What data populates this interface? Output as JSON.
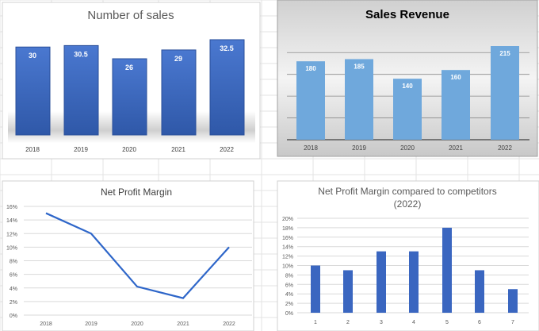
{
  "colors": {
    "bar_dark": "#3a66c0",
    "bar_light": "#6fa8dc",
    "line": "#2e66c9",
    "grid": "#d9d9d9",
    "sheet_grid": "#e3e3e3"
  },
  "chart_data": [
    {
      "type": "bar",
      "title": "Number of sales",
      "categories": [
        "2018",
        "2019",
        "2020",
        "2021",
        "2022"
      ],
      "values": [
        30,
        30.5,
        26,
        29,
        32.5
      ],
      "data_labels": [
        "30",
        "30.5",
        "26",
        "29",
        "32.5"
      ],
      "ylim": [
        0,
        35
      ],
      "grid": false,
      "legend": "none"
    },
    {
      "type": "bar",
      "title": "Sales Revenue",
      "categories": [
        "2018",
        "2019",
        "2020",
        "2021",
        "2022"
      ],
      "values": [
        180,
        185,
        140,
        160,
        215
      ],
      "data_labels": [
        "180",
        "185",
        "140",
        "160",
        "215"
      ],
      "ylim": [
        0,
        250
      ],
      "grid": true,
      "legend": "none"
    },
    {
      "type": "line",
      "title": "Net Profit Margin",
      "categories": [
        "2018",
        "2019",
        "2020",
        "2021",
        "2022"
      ],
      "values": [
        15,
        12,
        4.2,
        2.5,
        10
      ],
      "yticks": [
        "0%",
        "2%",
        "4%",
        "6%",
        "8%",
        "10%",
        "12%",
        "14%",
        "16%"
      ],
      "ylim": [
        0,
        16
      ],
      "grid": true,
      "legend": "none"
    },
    {
      "type": "bar",
      "title": "Net Profit Margin compared to competitors",
      "subtitle": "(2022)",
      "categories": [
        "1",
        "2",
        "3",
        "4",
        "5",
        "6",
        "7"
      ],
      "values": [
        10,
        9,
        13,
        13,
        18,
        9,
        5
      ],
      "yticks": [
        "0%",
        "2%",
        "4%",
        "6%",
        "8%",
        "10%",
        "12%",
        "14%",
        "16%",
        "18%",
        "20%"
      ],
      "ylim": [
        0,
        20
      ],
      "grid": true,
      "legend": "none"
    }
  ]
}
